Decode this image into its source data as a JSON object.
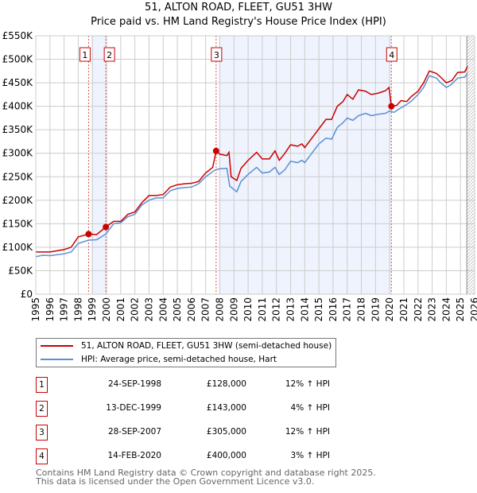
{
  "title": "51, ALTON ROAD, FLEET, GU51 3HW",
  "subtitle": "Price paid vs. HM Land Registry's House Price Index (HPI)",
  "chart_data": {
    "type": "line",
    "title": "51, ALTON ROAD, FLEET, GU51 3HW",
    "ylim": [
      0,
      550000
    ],
    "xlim": [
      1995,
      2026
    ],
    "yticks": [
      "£0",
      "£50K",
      "£100K",
      "£150K",
      "£200K",
      "£250K",
      "£300K",
      "£350K",
      "£400K",
      "£450K",
      "£500K",
      "£550K"
    ],
    "xticks": [
      "1995",
      "1996",
      "1997",
      "1998",
      "1999",
      "2000",
      "2001",
      "2002",
      "2003",
      "2004",
      "2005",
      "2006",
      "2007",
      "2008",
      "2009",
      "2010",
      "2011",
      "2012",
      "2013",
      "2014",
      "2015",
      "2016",
      "2017",
      "2018",
      "2019",
      "2020",
      "2021",
      "2022",
      "2023",
      "2024",
      "2025",
      "2026"
    ],
    "colors": {
      "property": "#cc0000",
      "hpi": "#5b8fd4",
      "shade": "#eef3fd"
    },
    "series": [
      {
        "name": "51, ALTON ROAD, FLEET, GU51 3HW (semi-detached house)",
        "x": [
          1995,
          1996,
          1997,
          1997.5,
          1998,
          1998.73,
          1999.3,
          1999.95,
          2000.5,
          2001,
          2001.5,
          2002,
          2002.5,
          2003,
          2003.5,
          2004,
          2004.5,
          2005,
          2005.5,
          2006,
          2006.5,
          2007,
          2007.5,
          2007.74,
          2008,
          2008.5,
          2008.65,
          2008.8,
          2009.2,
          2009.5,
          2010,
          2010.6,
          2011,
          2011.5,
          2011.9,
          2012.2,
          2012.6,
          2013,
          2013.5,
          2013.8,
          2014,
          2014.5,
          2015,
          2015.5,
          2015.9,
          2016.3,
          2016.7,
          2017,
          2017.4,
          2017.8,
          2018.3,
          2018.7,
          2019.2,
          2019.7,
          2019.95,
          2020.12,
          2020.5,
          2020.8,
          2021.2,
          2021.5,
          2022,
          2022.4,
          2022.8,
          2023.3,
          2023.6,
          2024,
          2024.4,
          2024.8,
          2025.3,
          2025.5
        ],
        "y": [
          90000,
          90000,
          95000,
          100000,
          122000,
          128000,
          127000,
          143000,
          155000,
          155000,
          170000,
          175000,
          195000,
          210000,
          210000,
          212000,
          228000,
          233000,
          235000,
          236000,
          240000,
          258000,
          270000,
          305000,
          298000,
          295000,
          302000,
          250000,
          242000,
          268000,
          285000,
          302000,
          288000,
          288000,
          305000,
          285000,
          300000,
          318000,
          315000,
          320000,
          312000,
          332000,
          352000,
          372000,
          372000,
          400000,
          410000,
          425000,
          415000,
          435000,
          432000,
          425000,
          428000,
          433000,
          440000,
          400000,
          402000,
          412000,
          410000,
          420000,
          432000,
          450000,
          475000,
          470000,
          462000,
          450000,
          455000,
          472000,
          473000,
          485000
        ]
      },
      {
        "name": "HPI: Average price, semi-detached house, Hart",
        "x": [
          1995,
          1995.5,
          1996,
          1997,
          1997.5,
          1998,
          1998.73,
          1999.3,
          1999.95,
          2000.5,
          2001,
          2001.5,
          2002,
          2002.5,
          2003,
          2003.5,
          2004,
          2004.5,
          2005,
          2005.5,
          2006,
          2006.5,
          2007,
          2007.7,
          2008,
          2008.5,
          2008.7,
          2009.2,
          2009.5,
          2010,
          2010.6,
          2011,
          2011.5,
          2011.9,
          2012.2,
          2012.6,
          2013,
          2013.5,
          2013.8,
          2014,
          2014.5,
          2015,
          2015.5,
          2015.9,
          2016.3,
          2016.7,
          2017,
          2017.4,
          2017.8,
          2018.3,
          2018.7,
          2019.2,
          2019.7,
          2020,
          2020.3,
          2020.7,
          2021,
          2021.5,
          2022,
          2022.4,
          2022.8,
          2023.3,
          2023.6,
          2024,
          2024.3,
          2024.8,
          2025.3,
          2025.5
        ],
        "y": [
          80000,
          83000,
          82000,
          86000,
          90000,
          108000,
          115000,
          116000,
          128000,
          150000,
          152000,
          165000,
          170000,
          190000,
          200000,
          205000,
          205000,
          220000,
          225000,
          227000,
          228000,
          235000,
          250000,
          265000,
          267000,
          268000,
          230000,
          218000,
          240000,
          255000,
          270000,
          258000,
          260000,
          270000,
          255000,
          265000,
          283000,
          280000,
          285000,
          280000,
          300000,
          320000,
          332000,
          330000,
          355000,
          365000,
          375000,
          370000,
          380000,
          385000,
          380000,
          383000,
          385000,
          390000,
          387000,
          395000,
          400000,
          410000,
          425000,
          440000,
          465000,
          460000,
          450000,
          440000,
          445000,
          460000,
          462000,
          470000
        ]
      }
    ],
    "sales": [
      {
        "label": "1",
        "x": 1998.73,
        "y": 128000
      },
      {
        "label": "2",
        "x": 1999.95,
        "y": 143000
      },
      {
        "label": "3",
        "x": 2007.74,
        "y": 305000
      },
      {
        "label": "4",
        "x": 2020.12,
        "y": 400000
      }
    ],
    "forecast_start": 2025.45
  },
  "legend": {
    "property": "51, ALTON ROAD, FLEET, GU51 3HW (semi-detached house)",
    "hpi": "HPI: Average price, semi-detached house, Hart"
  },
  "transactions": [
    {
      "num": "1",
      "date": "24-SEP-1998",
      "price": "£128,000",
      "hpi": "12% ↑ HPI"
    },
    {
      "num": "2",
      "date": "13-DEC-1999",
      "price": "£143,000",
      "hpi": "4% ↑ HPI"
    },
    {
      "num": "3",
      "date": "28-SEP-2007",
      "price": "£305,000",
      "hpi": "12% ↑ HPI"
    },
    {
      "num": "4",
      "date": "14-FEB-2020",
      "price": "£400,000",
      "hpi": "3% ↑ HPI"
    }
  ],
  "footer": [
    "Contains HM Land Registry data © Crown copyright and database right 2025.",
    "This data is licensed under the Open Government Licence v3.0."
  ]
}
